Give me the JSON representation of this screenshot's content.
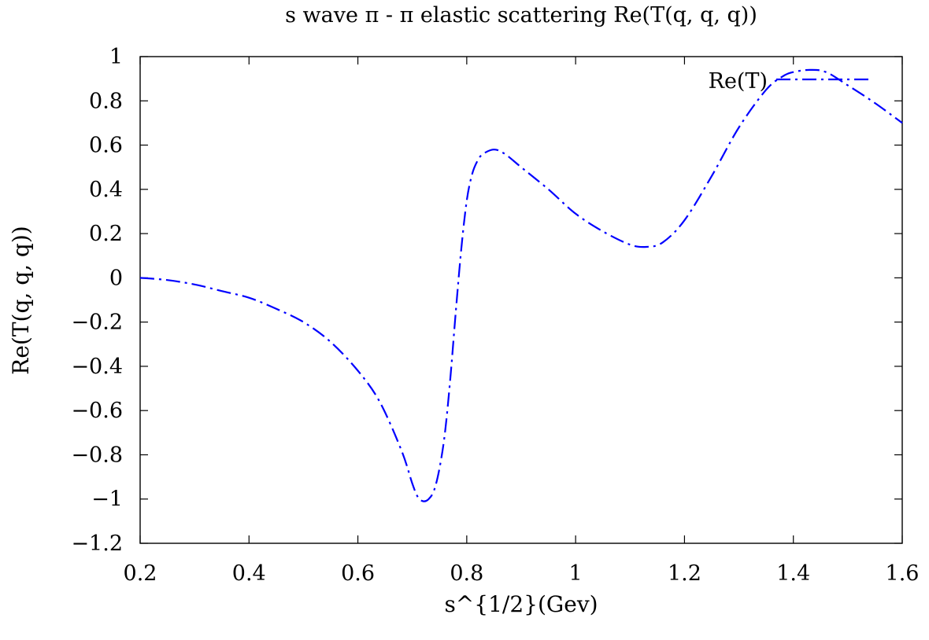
{
  "chart_data": {
    "type": "line",
    "title": "s wave π - π elastic scattering Re(T(q, q, q))",
    "xlabel": "s^{1/2}(Gev)",
    "ylabel": "Re(T(q, q, q))",
    "xlim": [
      0.2,
      1.6
    ],
    "ylim": [
      -1.2,
      1.0
    ],
    "x_ticks": [
      0.2,
      0.4,
      0.6,
      0.8,
      1.0,
      1.2,
      1.4,
      1.6
    ],
    "x_tick_labels": [
      "0.2",
      "0.4",
      "0.6",
      "0.8",
      "1",
      "1.2",
      "1.4",
      "1.6"
    ],
    "y_ticks": [
      1.0,
      0.8,
      0.6,
      0.4,
      0.2,
      0.0,
      -0.2,
      -0.4,
      -0.6,
      -0.8,
      -1.0,
      -1.2
    ],
    "y_tick_labels": [
      "1",
      "0.8",
      "0.6",
      "0.4",
      "0.2",
      "0",
      "−0.2",
      "−0.4",
      "−0.6",
      "−0.8",
      "−1",
      "−1.2"
    ],
    "grid": false,
    "legend_position": "top-right",
    "series": [
      {
        "name": "Re(T)",
        "color": "#0000ff",
        "dash": "dash-dot",
        "x": [
          0.2,
          0.25,
          0.3,
          0.35,
          0.4,
          0.45,
          0.5,
          0.55,
          0.6,
          0.64,
          0.68,
          0.7,
          0.71,
          0.72,
          0.73,
          0.74,
          0.75,
          0.76,
          0.77,
          0.78,
          0.79,
          0.8,
          0.81,
          0.82,
          0.83,
          0.85,
          0.87,
          0.9,
          0.95,
          1.0,
          1.05,
          1.1,
          1.13,
          1.16,
          1.2,
          1.25,
          1.3,
          1.35,
          1.38,
          1.4,
          1.43,
          1.46,
          1.5,
          1.55,
          1.6
        ],
        "y": [
          0.0,
          -0.01,
          -0.03,
          -0.06,
          -0.09,
          -0.14,
          -0.2,
          -0.29,
          -0.42,
          -0.56,
          -0.78,
          -0.93,
          -0.99,
          -1.01,
          -1.0,
          -0.96,
          -0.86,
          -0.7,
          -0.45,
          -0.15,
          0.13,
          0.35,
          0.47,
          0.53,
          0.56,
          0.58,
          0.56,
          0.5,
          0.4,
          0.29,
          0.21,
          0.15,
          0.14,
          0.16,
          0.26,
          0.46,
          0.68,
          0.85,
          0.91,
          0.93,
          0.94,
          0.93,
          0.87,
          0.79,
          0.7
        ]
      }
    ]
  }
}
